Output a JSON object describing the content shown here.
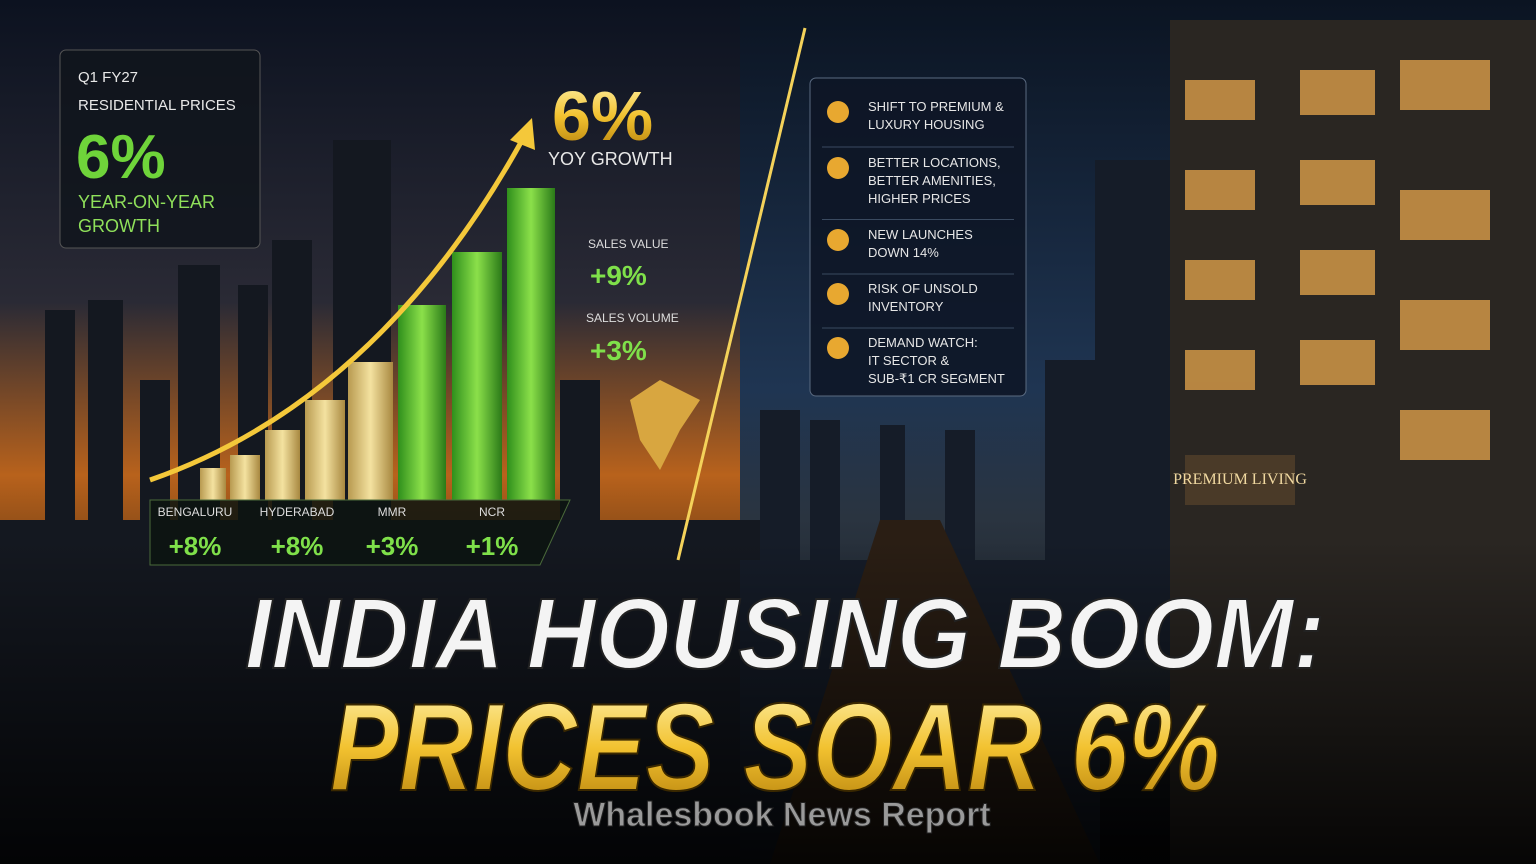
{
  "stat_box": {
    "period": "Q1 FY27",
    "label": "RESIDENTIAL PRICES",
    "value": "6%",
    "caption": [
      "YEAR-ON-YEAR",
      "GROWTH"
    ]
  },
  "headline_stat": {
    "value": "6%",
    "label": "YOY GROWTH"
  },
  "side_stats": [
    {
      "label": "SALES VALUE",
      "value": "+9%"
    },
    {
      "label": "SALES VOLUME",
      "value": "+3%"
    }
  ],
  "cities": [
    {
      "name": "BENGALURU",
      "change": "+8%"
    },
    {
      "name": "HYDERABAD",
      "change": "+8%"
    },
    {
      "name": "MMR",
      "change": "+3%"
    },
    {
      "name": "NCR",
      "change": "+1%"
    }
  ],
  "highlights": [
    [
      "SHIFT TO PREMIUM &",
      "LUXURY HOUSING"
    ],
    [
      "BETTER LOCATIONS,",
      "BETTER AMENITIES,",
      "HIGHER PRICES"
    ],
    [
      "NEW LAUNCHES",
      "DOWN 14%"
    ],
    [
      "RISK OF UNSOLD",
      "INVENTORY"
    ],
    [
      "DEMAND WATCH:",
      "IT SECTOR &",
      "SUB-₹1 CR SEGMENT"
    ]
  ],
  "sign": "PREMIUM LIVING",
  "title": [
    "INDIA HOUSING BOOM:",
    "PRICES SOAR 6%"
  ],
  "source": "Whalesbook News Report"
}
